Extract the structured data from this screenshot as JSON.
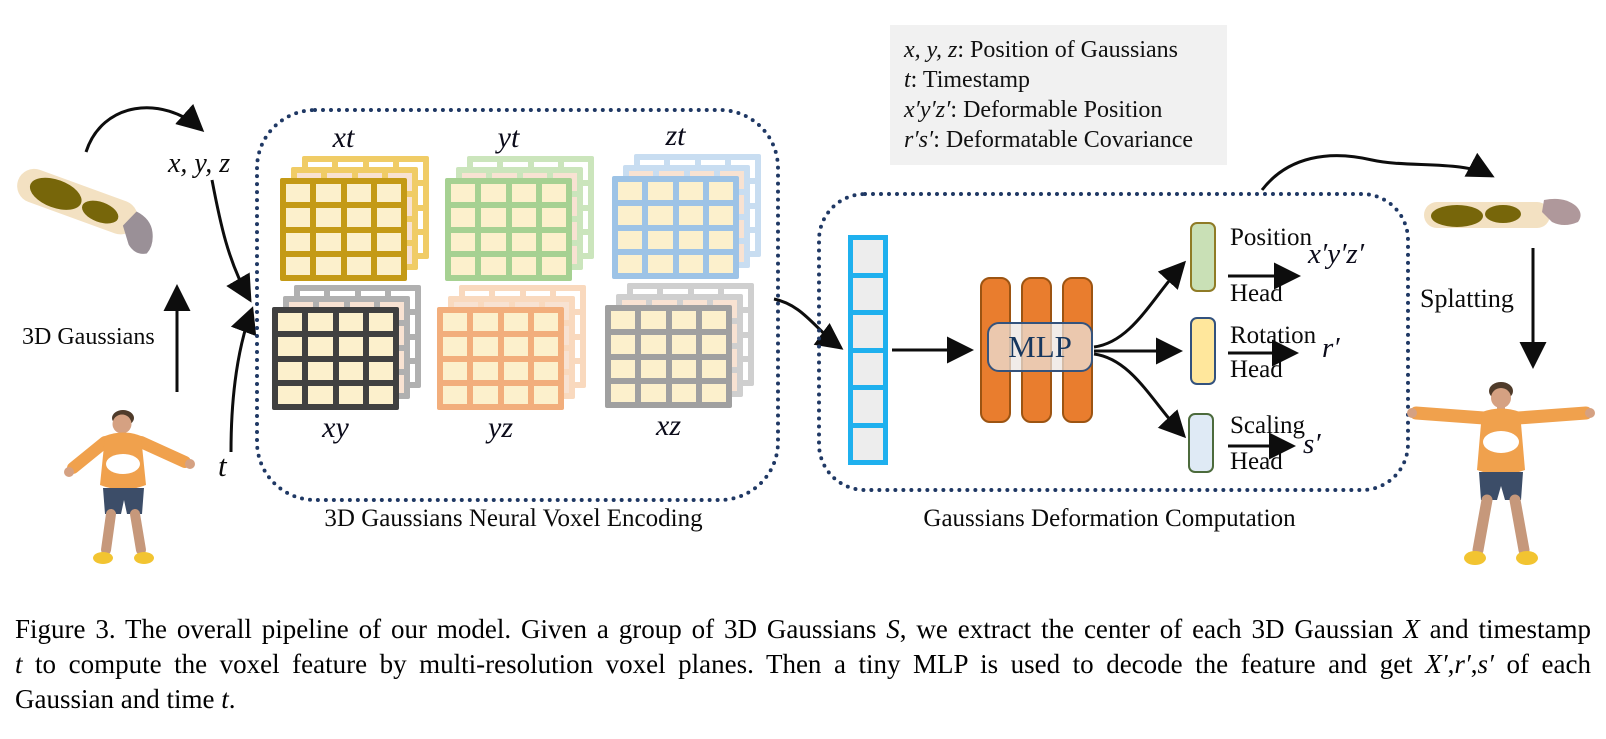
{
  "labels": {
    "xyz": "x, y, z",
    "t": "t",
    "gaussians_3d": "3D Gaussians",
    "splatting": "Splatting"
  },
  "legend": {
    "lines": [
      [
        {
          "t": "x, y, z",
          "i": 1
        },
        {
          "t": ": Position of Gaussians",
          "i": 0
        }
      ],
      [
        {
          "t": "t",
          "i": 1
        },
        {
          "t": ": Timestamp",
          "i": 0
        }
      ],
      [
        {
          "t": "x′y′z′",
          "i": 1
        },
        {
          "t": ": Deformable Position",
          "i": 0
        }
      ],
      [
        {
          "t": "r′s′",
          "i": 1
        },
        {
          "t": ": Deformatable Covariance",
          "i": 0
        }
      ]
    ]
  },
  "voxel_box": {
    "caption": "3D Gaussians Neural Voxel Encoding",
    "cell_fill": "#FCF0CC",
    "mid_fill": "#F8E2D2",
    "planes": [
      {
        "label": "xt",
        "main": "#C49A16",
        "light": "#F0CC66"
      },
      {
        "label": "yt",
        "main": "#A6D192",
        "light": "#CBE5BC"
      },
      {
        "label": "zt",
        "main": "#9DC3E6",
        "light": "#C8DDF1"
      },
      {
        "label": "xy",
        "main": "#404040",
        "light": "#B0B0B0"
      },
      {
        "label": "yz",
        "main": "#F2AE7C",
        "light": "#F9D9BE"
      },
      {
        "label": "xz",
        "main": "#A0A0A0",
        "light": "#CFCFCF"
      }
    ]
  },
  "deformation_box": {
    "caption": "Gaussians Deformation Computation",
    "mlp_label": "MLP",
    "heads": [
      {
        "line1": "Position",
        "line2": "Head",
        "output": "x′y′z′",
        "fill": "#C9E0B6",
        "border": "#8F7B26"
      },
      {
        "line1": "Rotation",
        "line2": "Head",
        "output": "r′",
        "fill": "#FFE79C",
        "border": "#33527E"
      },
      {
        "line1": "Scaling",
        "line2": "Head",
        "output": "s′",
        "fill": "#DFEAF5",
        "border": "#4C6B3C"
      }
    ]
  },
  "caption_lines": [
    [
      {
        "t": "Figure 3. The overall pipeline of our model. Given a group of 3D Gaussians ",
        "i": 0
      },
      {
        "t": "S",
        "i": 2
      },
      {
        "t": ", we extract the center of each 3D Gaussian ",
        "i": 0
      },
      {
        "t": "X",
        "i": 2
      },
      {
        "t": " and timestamp",
        "i": 0
      }
    ],
    [
      {
        "t": "t",
        "i": 1
      },
      {
        "t": " to compute the voxel feature by multi-resolution voxel planes. Then a tiny MLP is used to decode the feature and get ",
        "i": 0
      },
      {
        "t": "X′",
        "i": 2
      },
      {
        "t": ",",
        "i": 0
      },
      {
        "t": "r′",
        "i": 1
      },
      {
        "t": ",",
        "i": 0
      },
      {
        "t": "s′",
        "i": 1
      },
      {
        "t": " of each",
        "i": 0
      }
    ],
    [
      {
        "t": "Gaussian and time ",
        "i": 0
      },
      {
        "t": "t",
        "i": 1
      },
      {
        "t": ".",
        "i": 0
      }
    ]
  ]
}
